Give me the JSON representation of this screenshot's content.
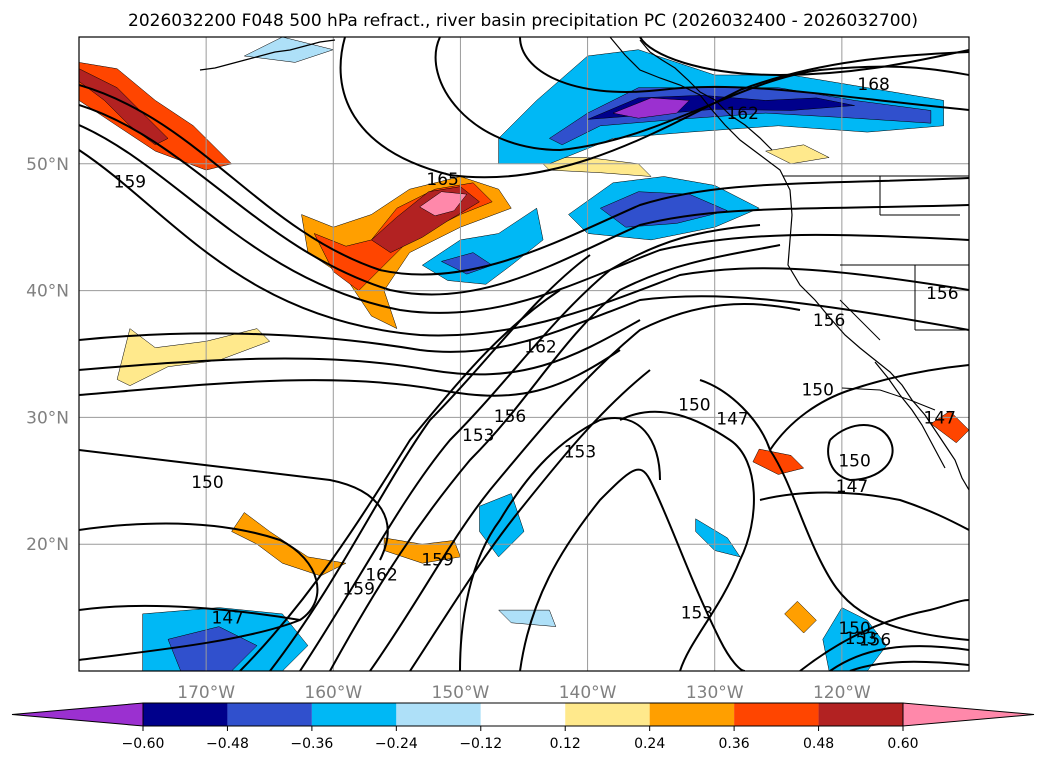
{
  "chart_data": {
    "type": "contour-map",
    "title": "2026032200 F048 500 hPa refract., river basin precipitation PC (2026032400 - 2026032700)",
    "map": {
      "lon_range": [
        -180,
        -110
      ],
      "lat_range": [
        10,
        60
      ],
      "grid": true,
      "projection": "PlateCarree"
    },
    "x_ticks": [
      {
        "lon": -170,
        "label": "170°W"
      },
      {
        "lon": -160,
        "label": "160°W"
      },
      {
        "lon": -150,
        "label": "150°W"
      },
      {
        "lon": -140,
        "label": "140°W"
      },
      {
        "lon": -130,
        "label": "130°W"
      },
      {
        "lon": -120,
        "label": "120°W"
      }
    ],
    "y_ticks": [
      {
        "lat": 20,
        "label": "20°N"
      },
      {
        "lat": 30,
        "label": "30°N"
      },
      {
        "lat": 40,
        "label": "40°N"
      },
      {
        "lat": 50,
        "label": "50°N"
      }
    ],
    "colorbar": {
      "orientation": "horizontal",
      "extend": "both",
      "levels": [
        -0.6,
        -0.48,
        -0.36,
        -0.24,
        -0.12,
        0.12,
        0.24,
        0.36,
        0.48,
        0.6
      ],
      "tick_labels": [
        "−0.60",
        "−0.48",
        "−0.36",
        "−0.24",
        "−0.12",
        "0.12",
        "0.24",
        "0.36",
        "0.48",
        "0.60"
      ],
      "colors": [
        "#9b30d0",
        "#00008b",
        "#3050cd",
        "#00b8f5",
        "#aee0f8",
        "#ffffff",
        "#ffe98c",
        "#ff9f00",
        "#ff4500",
        "#b22222",
        "#ff88aa"
      ]
    },
    "contour_levels_labeled": [
      147,
      150,
      153,
      156,
      159,
      162,
      165,
      168
    ],
    "contour_labels": [
      {
        "text": "168",
        "lon": -117.5,
        "lat": 56.3
      },
      {
        "text": "162",
        "lon": -127.8,
        "lat": 54.0
      },
      {
        "text": "165",
        "lon": -151.4,
        "lat": 48.8
      },
      {
        "text": "159",
        "lon": -176.0,
        "lat": 48.6
      },
      {
        "text": "156",
        "lon": -112.1,
        "lat": 39.8
      },
      {
        "text": "156",
        "lon": -121.0,
        "lat": 37.7
      },
      {
        "text": "162",
        "lon": -143.7,
        "lat": 35.6
      },
      {
        "text": "150",
        "lon": -121.9,
        "lat": 32.2
      },
      {
        "text": "150",
        "lon": -131.6,
        "lat": 31.0
      },
      {
        "text": "147",
        "lon": -128.6,
        "lat": 29.9
      },
      {
        "text": "147",
        "lon": -112.3,
        "lat": 30.0
      },
      {
        "text": "153",
        "lon": -148.6,
        "lat": 28.6
      },
      {
        "text": "156",
        "lon": -146.1,
        "lat": 30.1
      },
      {
        "text": "153",
        "lon": -140.6,
        "lat": 27.3
      },
      {
        "text": "150",
        "lon": -119.0,
        "lat": 26.6
      },
      {
        "text": "147",
        "lon": -119.2,
        "lat": 24.6
      },
      {
        "text": "150",
        "lon": -169.9,
        "lat": 24.9
      },
      {
        "text": "159",
        "lon": -151.8,
        "lat": 18.8
      },
      {
        "text": "162",
        "lon": -156.2,
        "lat": 17.6
      },
      {
        "text": "159",
        "lon": -158.0,
        "lat": 16.5
      },
      {
        "text": "153",
        "lon": -131.4,
        "lat": 14.6
      },
      {
        "text": "147",
        "lon": -168.3,
        "lat": 14.2
      },
      {
        "text": "150",
        "lon": -119.0,
        "lat": 13.4
      },
      {
        "text": "153",
        "lon": -118.5,
        "lat": 12.6
      },
      {
        "text": "156",
        "lon": -117.4,
        "lat": 12.5
      }
    ],
    "precip_pc_regions": [
      {
        "value": 0.42,
        "points": [
          [
            -180,
            58
          ],
          [
            -177,
            57.5
          ],
          [
            -174,
            55
          ],
          [
            -171,
            53
          ],
          [
            -168,
            50
          ],
          [
            -170,
            49.5
          ],
          [
            -174,
            51
          ],
          [
            -177,
            53
          ],
          [
            -180,
            55
          ]
        ]
      },
      {
        "value": 0.55,
        "points": [
          [
            -180,
            57.5
          ],
          [
            -177,
            56
          ],
          [
            -175,
            54
          ],
          [
            -173,
            52
          ],
          [
            -174,
            51.5
          ],
          [
            -176,
            53
          ],
          [
            -178,
            55
          ],
          [
            -180,
            56.5
          ]
        ]
      },
      {
        "value": 0.3,
        "points": [
          [
            -162.5,
            46
          ],
          [
            -160,
            45
          ],
          [
            -157,
            46
          ],
          [
            -154,
            48
          ],
          [
            -150,
            49
          ],
          [
            -147,
            48
          ],
          [
            -146,
            46.5
          ],
          [
            -150,
            45
          ],
          [
            -154,
            43
          ],
          [
            -156,
            40
          ],
          [
            -155,
            37
          ],
          [
            -157,
            38
          ],
          [
            -159,
            41
          ],
          [
            -162,
            43
          ]
        ]
      },
      {
        "value": 0.4,
        "points": [
          [
            -161.5,
            44.5
          ],
          [
            -159,
            43.5
          ],
          [
            -157,
            44
          ],
          [
            -155,
            46.5
          ],
          [
            -152,
            48
          ],
          [
            -149,
            48.5
          ],
          [
            -147.5,
            47
          ],
          [
            -150,
            46
          ],
          [
            -154,
            44
          ],
          [
            -156,
            42
          ],
          [
            -158,
            40
          ],
          [
            -160,
            41.5
          ]
        ]
      },
      {
        "value": 0.5,
        "points": [
          [
            -157,
            44
          ],
          [
            -155,
            45.8
          ],
          [
            -152.5,
            47.8
          ],
          [
            -150,
            48.2
          ],
          [
            -148.5,
            47
          ],
          [
            -151,
            45.5
          ],
          [
            -153,
            44.2
          ],
          [
            -155.5,
            43
          ]
        ]
      },
      {
        "value": 0.65,
        "points": [
          [
            -153.2,
            46.6
          ],
          [
            -151.5,
            47.8
          ],
          [
            -149.5,
            47.6
          ],
          [
            -150.5,
            46.3
          ],
          [
            -152,
            45.9
          ]
        ]
      },
      {
        "value": 0.2,
        "points": [
          [
            -176,
            37
          ],
          [
            -174,
            35.5
          ],
          [
            -170,
            36
          ],
          [
            -166,
            37
          ],
          [
            -165,
            36
          ],
          [
            -169,
            34.5
          ],
          [
            -173,
            34
          ],
          [
            -176,
            32.5
          ],
          [
            -177,
            33
          ]
        ]
      },
      {
        "value": 0.3,
        "points": [
          [
            -168,
            21
          ],
          [
            -166,
            20
          ],
          [
            -164,
            18.5
          ],
          [
            -161,
            17.5
          ],
          [
            -159,
            18.5
          ],
          [
            -162,
            19
          ],
          [
            -165,
            21
          ],
          [
            -167,
            22.5
          ]
        ]
      },
      {
        "value": 0.3,
        "points": [
          [
            -156,
            20.5
          ],
          [
            -153,
            20
          ],
          [
            -150.5,
            20.3
          ],
          [
            -150,
            19
          ],
          [
            -153,
            18.5
          ],
          [
            -156,
            19.5
          ]
        ]
      },
      {
        "value": 0.4,
        "points": [
          [
            -126.5,
            27.5
          ],
          [
            -124,
            27
          ],
          [
            -123,
            26
          ],
          [
            -125,
            25.5
          ],
          [
            -127,
            26.5
          ]
        ]
      },
      {
        "value": 0.4,
        "points": [
          [
            -113,
            29.5
          ],
          [
            -111,
            28
          ],
          [
            -110,
            29
          ],
          [
            -111.5,
            30.5
          ]
        ]
      },
      {
        "value": 0.3,
        "points": [
          [
            -124.5,
            14.5
          ],
          [
            -123,
            13
          ],
          [
            -122,
            14
          ],
          [
            -123.5,
            15.5
          ]
        ]
      },
      {
        "value": 0.2,
        "points": [
          [
            -126,
            51
          ],
          [
            -123,
            51.5
          ],
          [
            -121,
            50.5
          ],
          [
            -124,
            50
          ]
        ]
      },
      {
        "value": 0.2,
        "points": [
          [
            -144,
            50.5
          ],
          [
            -140,
            50.5
          ],
          [
            -136,
            50
          ],
          [
            -135,
            49
          ],
          [
            -139,
            49.3
          ],
          [
            -143,
            49.5
          ]
        ]
      },
      {
        "value": -0.3,
        "points": [
          [
            -147,
            52
          ],
          [
            -144,
            55
          ],
          [
            -140,
            58.5
          ],
          [
            -136,
            59
          ],
          [
            -130,
            57
          ],
          [
            -124,
            57
          ],
          [
            -118,
            56
          ],
          [
            -112,
            55
          ],
          [
            -112,
            53
          ],
          [
            -118,
            52.5
          ],
          [
            -125,
            53
          ],
          [
            -132,
            52.5
          ],
          [
            -138,
            52
          ],
          [
            -143,
            50
          ],
          [
            -147,
            50
          ]
        ]
      },
      {
        "value": -0.42,
        "points": [
          [
            -143,
            52
          ],
          [
            -140,
            54
          ],
          [
            -136,
            56
          ],
          [
            -131,
            56
          ],
          [
            -125,
            56
          ],
          [
            -119,
            55
          ],
          [
            -113,
            54.2
          ],
          [
            -113,
            53.2
          ],
          [
            -119,
            53.6
          ],
          [
            -126,
            54
          ],
          [
            -133,
            53.5
          ],
          [
            -139,
            53
          ],
          [
            -142,
            51.5
          ]
        ]
      },
      {
        "value": -0.55,
        "points": [
          [
            -140,
            53.5
          ],
          [
            -136,
            55.2
          ],
          [
            -131,
            55.4
          ],
          [
            -126,
            55
          ],
          [
            -122,
            55.2
          ],
          [
            -119,
            54.6
          ],
          [
            -124,
            54.2
          ],
          [
            -130,
            54.3
          ],
          [
            -136,
            53.8
          ]
        ]
      },
      {
        "value": -0.66,
        "points": [
          [
            -138,
            54
          ],
          [
            -135,
            55.2
          ],
          [
            -132,
            55
          ],
          [
            -133,
            54
          ],
          [
            -136,
            53.6
          ]
        ]
      },
      {
        "value": -0.3,
        "points": [
          [
            -141.5,
            46
          ],
          [
            -138,
            48.5
          ],
          [
            -134,
            49
          ],
          [
            -130,
            48.3
          ],
          [
            -126.5,
            46.5
          ],
          [
            -130,
            45
          ],
          [
            -135,
            44
          ],
          [
            -140,
            44.5
          ]
        ]
      },
      {
        "value": -0.45,
        "points": [
          [
            -139,
            46.5
          ],
          [
            -136,
            47.8
          ],
          [
            -132,
            47.6
          ],
          [
            -129,
            46.3
          ],
          [
            -133,
            45.3
          ],
          [
            -137,
            45
          ]
        ]
      },
      {
        "value": -0.3,
        "points": [
          [
            -153,
            42
          ],
          [
            -150,
            44
          ],
          [
            -147,
            44.5
          ],
          [
            -144,
            46.5
          ],
          [
            -143.5,
            44
          ],
          [
            -146,
            42
          ],
          [
            -148,
            40.5
          ],
          [
            -151,
            40.8
          ]
        ]
      },
      {
        "value": -0.45,
        "points": [
          [
            -151.5,
            42.3
          ],
          [
            -149,
            43
          ],
          [
            -147.5,
            42
          ],
          [
            -149.5,
            41.3
          ]
        ]
      },
      {
        "value": -0.3,
        "points": [
          [
            -131.5,
            22
          ],
          [
            -129,
            20.5
          ],
          [
            -128,
            19
          ],
          [
            -130,
            19.5
          ],
          [
            -131.5,
            21
          ]
        ]
      },
      {
        "value": -0.25,
        "points": [
          [
            -148.5,
            23
          ],
          [
            -146,
            24
          ],
          [
            -145,
            21
          ],
          [
            -147,
            19
          ],
          [
            -148.5,
            21
          ]
        ]
      },
      {
        "value": -0.35,
        "points": [
          [
            -175,
            14.5
          ],
          [
            -169,
            15
          ],
          [
            -164,
            14.5
          ],
          [
            -162,
            12
          ],
          [
            -164,
            10
          ],
          [
            -175,
            10
          ]
        ]
      },
      {
        "value": -0.45,
        "points": [
          [
            -173,
            12.5
          ],
          [
            -169,
            13.5
          ],
          [
            -166,
            12
          ],
          [
            -168,
            10
          ],
          [
            -172,
            10
          ]
        ]
      },
      {
        "value": -0.3,
        "points": [
          [
            -120,
            15
          ],
          [
            -118,
            14
          ],
          [
            -116.5,
            12
          ],
          [
            -118,
            10
          ],
          [
            -121,
            10
          ],
          [
            -121.5,
            12.5
          ]
        ]
      },
      {
        "value": -0.2,
        "points": [
          [
            -164,
            60
          ],
          [
            -160,
            59
          ],
          [
            -163,
            58
          ],
          [
            -167,
            58.5
          ]
        ]
      },
      {
        "value": -0.2,
        "points": [
          [
            -147,
            14.8
          ],
          [
            -143,
            14.8
          ],
          [
            -142.5,
            13.5
          ],
          [
            -146,
            13.8
          ]
        ]
      }
    ]
  }
}
